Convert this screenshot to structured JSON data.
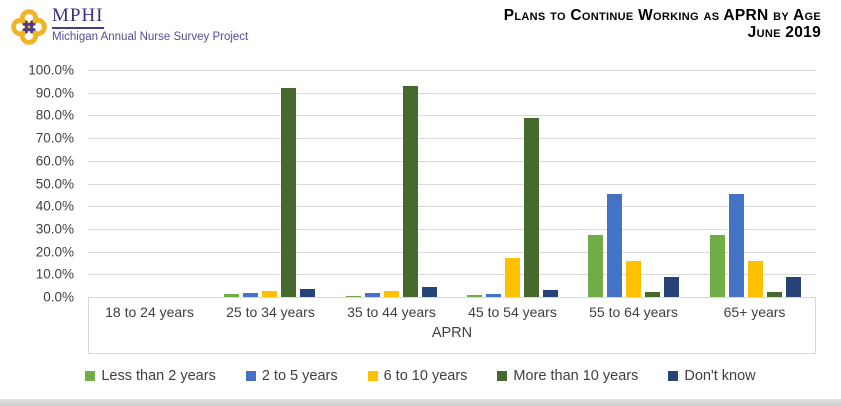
{
  "header": {
    "logo": {
      "acronym": "MPHI",
      "subtitle": "Michigan Annual Nurse Survey Project",
      "purple": "#4A3B8C",
      "gold": "#F0B428"
    },
    "title_line1": "Plans to Continue Working as APRN by Age",
    "title_line2": "June 2019"
  },
  "chart_data": {
    "type": "bar",
    "title": "Plans to Continue Working as APRN by Age",
    "subtitle": "June 2019",
    "xlabel": "APRN",
    "ylabel": "",
    "ylim": [
      0,
      100
    ],
    "ytick_step": 10,
    "grid": true,
    "legend_position": "bottom",
    "ytick_labels": [
      "100.0%",
      "90.0%",
      "80.0%",
      "70.0%",
      "60.0%",
      "50.0%",
      "40.0%",
      "30.0%",
      "20.0%",
      "10.0%",
      "0.0%"
    ],
    "categories": [
      "18 to 24 years",
      "25 to 34 years",
      "35 to 44 years",
      "45 to 54 years",
      "55 to 64 years",
      "65+ years"
    ],
    "series": [
      {
        "name": "Less than 2 years",
        "color": "#70AD47",
        "values": [
          0,
          1.5,
          0.5,
          1.0,
          27.5,
          27.5
        ]
      },
      {
        "name": "2 to 5 years",
        "color": "#4472C4",
        "values": [
          0,
          1.8,
          1.8,
          1.4,
          45.5,
          45.5
        ]
      },
      {
        "name": "6 to 10 years",
        "color": "#FFC000",
        "values": [
          0,
          2.6,
          2.5,
          17.0,
          16.0,
          15.8
        ]
      },
      {
        "name": "More than 10 years",
        "color": "#466A2E",
        "values": [
          0,
          92.0,
          93.0,
          79.0,
          2.2,
          2.2
        ]
      },
      {
        "name": "Don't know",
        "color": "#264478",
        "values": [
          0,
          3.6,
          4.2,
          3.2,
          9.0,
          8.8
        ]
      }
    ],
    "gridline_color": "#D9D9D9",
    "text_color": "#404040"
  }
}
